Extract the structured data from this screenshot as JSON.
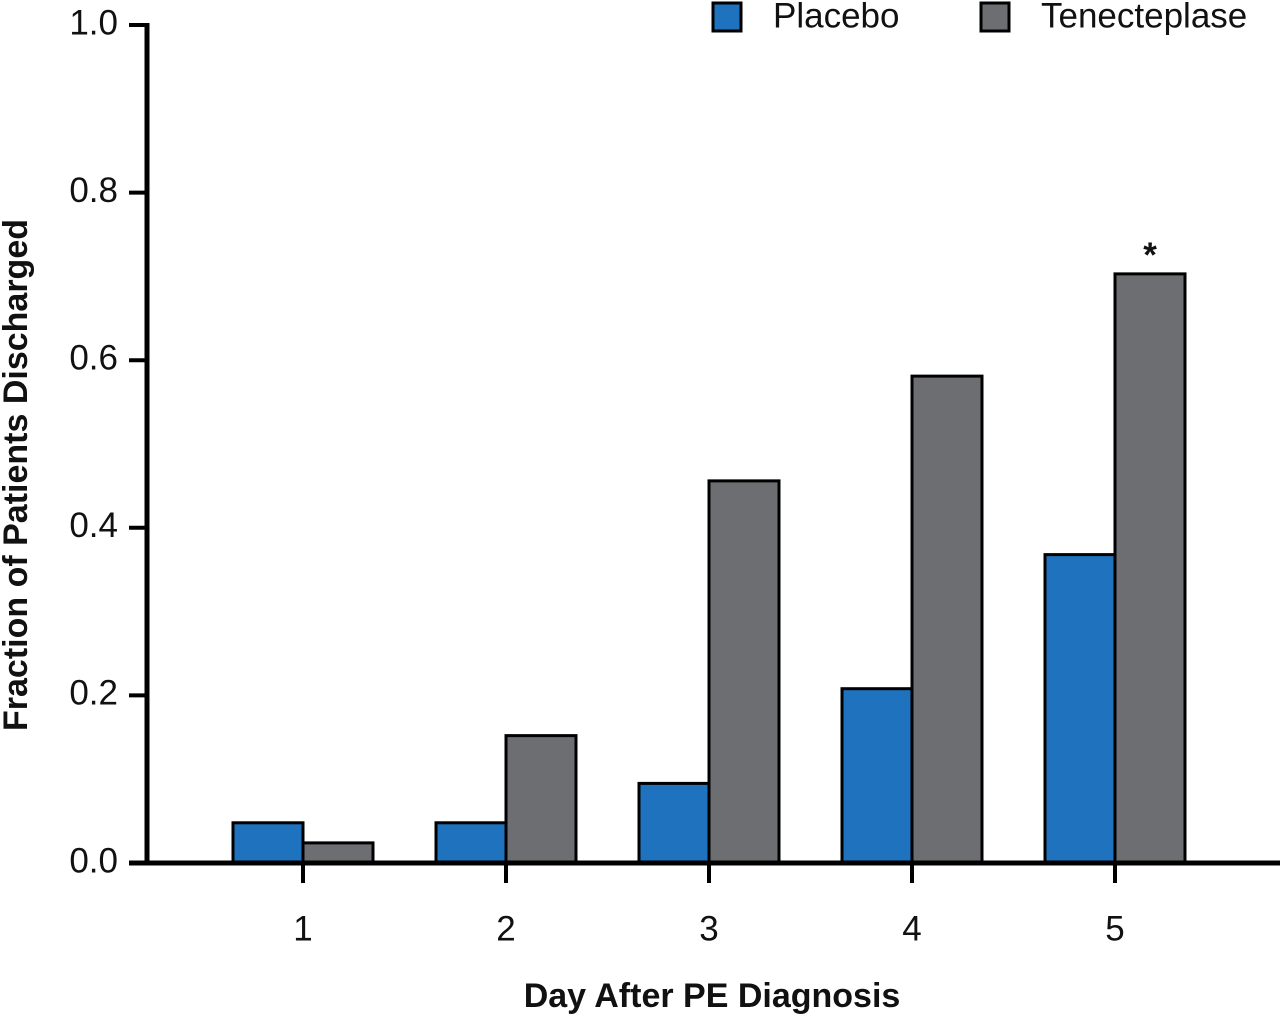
{
  "chart_data": {
    "type": "bar",
    "x_label": "Day After PE Diagnosis",
    "y_label": "Fraction of Patients Discharged",
    "categories": [
      "1",
      "2",
      "3",
      "4",
      "5"
    ],
    "series": [
      {
        "name": "Placebo",
        "color": "#1f72bd",
        "values": [
          0.048,
          0.048,
          0.095,
          0.208,
          0.368
        ]
      },
      {
        "name": "Tenecteplase",
        "color": "#6d6e71",
        "values": [
          0.024,
          0.152,
          0.456,
          0.581,
          0.703
        ]
      }
    ],
    "annotation": "*",
    "ylim": [
      0,
      1.0
    ],
    "yticks": [
      {
        "value": 0,
        "label": "0.0"
      },
      {
        "value": 0.2,
        "label": "0.2"
      },
      {
        "value": 0.4,
        "label": "0.4"
      },
      {
        "value": 0.6,
        "label": "0.6"
      },
      {
        "value": 0.8,
        "label": "0.8"
      },
      {
        "value": 1.0,
        "label": "1.0"
      }
    ],
    "legend": "upper right",
    "grid": false
  }
}
